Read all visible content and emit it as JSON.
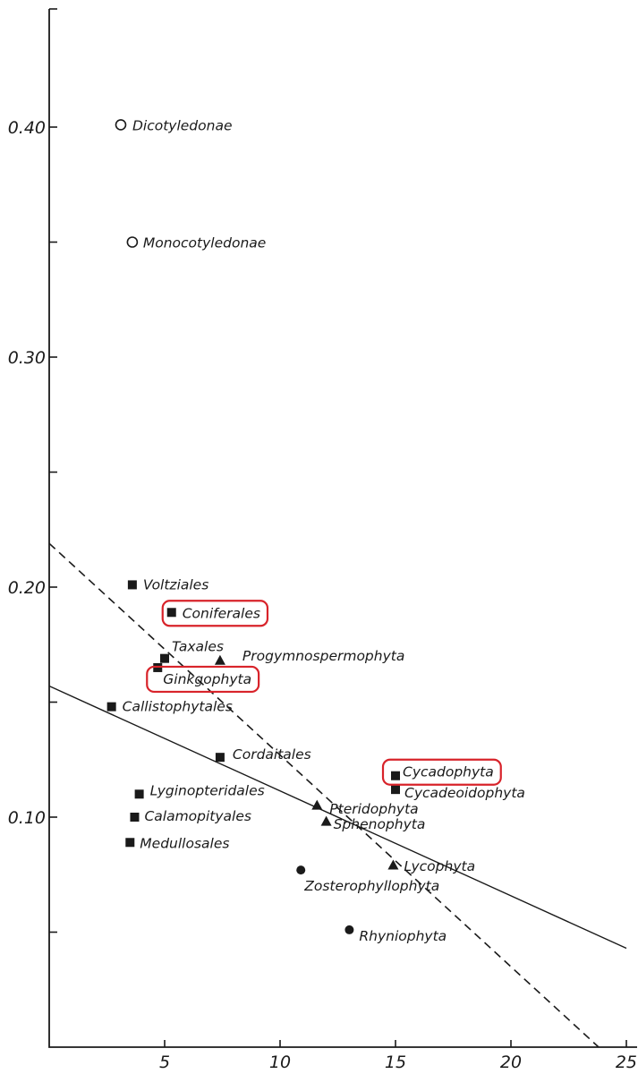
{
  "chart_data": {
    "type": "scatter",
    "title": "",
    "xlabel": "",
    "ylabel": "",
    "xlim": [
      0,
      25
    ],
    "ylim": [
      0,
      0.455
    ],
    "x_ticks": [
      {
        "value": 5,
        "label": "5"
      },
      {
        "value": 10,
        "label": "10"
      },
      {
        "value": 15,
        "label": "15"
      },
      {
        "value": 20,
        "label": "20"
      },
      {
        "value": 25,
        "label": "25"
      }
    ],
    "y_ticks": [
      {
        "value": 0.05,
        "label": ""
      },
      {
        "value": 0.1,
        "label": "0.10"
      },
      {
        "value": 0.15,
        "label": ""
      },
      {
        "value": 0.2,
        "label": "0.20"
      },
      {
        "value": 0.25,
        "label": ""
      },
      {
        "value": 0.3,
        "label": "0.30"
      },
      {
        "value": 0.35,
        "label": ""
      },
      {
        "value": 0.4,
        "label": "0.40"
      }
    ],
    "grid": false,
    "legend": "none",
    "points": [
      {
        "label": "Dicotyledonae",
        "x": 3.1,
        "y": 0.401,
        "marker": "open-circle",
        "highlighted": false
      },
      {
        "label": "Monocotyledonae",
        "x": 3.6,
        "y": 0.35,
        "marker": "open-circle",
        "highlighted": false
      },
      {
        "label": "Voltziales",
        "x": 3.6,
        "y": 0.201,
        "marker": "square",
        "highlighted": false
      },
      {
        "label": "Coniferales",
        "x": 5.3,
        "y": 0.189,
        "marker": "square",
        "highlighted": true
      },
      {
        "label": "Taxales",
        "x": 5.0,
        "y": 0.169,
        "marker": "square",
        "highlighted": false
      },
      {
        "label": "Progymnospermophyta",
        "x": 7.4,
        "y": 0.168,
        "marker": "triangle",
        "highlighted": false
      },
      {
        "label": "Ginkgophyta",
        "x": 4.7,
        "y": 0.165,
        "marker": "square",
        "highlighted": true
      },
      {
        "label": "Callistophytales",
        "x": 2.7,
        "y": 0.148,
        "marker": "square",
        "highlighted": false
      },
      {
        "label": "Cordaitales",
        "x": 7.4,
        "y": 0.126,
        "marker": "square",
        "highlighted": false
      },
      {
        "label": "Cycadophyta",
        "x": 15.0,
        "y": 0.118,
        "marker": "square",
        "highlighted": true
      },
      {
        "label": "Cycadeoidophyta",
        "x": 15.0,
        "y": 0.112,
        "marker": "square",
        "highlighted": false
      },
      {
        "label": "Lyginopteridales",
        "x": 3.9,
        "y": 0.11,
        "marker": "square",
        "highlighted": false
      },
      {
        "label": "Pteridophyta",
        "x": 11.6,
        "y": 0.105,
        "marker": "triangle",
        "highlighted": false
      },
      {
        "label": "Calamopityales",
        "x": 3.7,
        "y": 0.1,
        "marker": "square",
        "highlighted": false
      },
      {
        "label": "Sphenophyta",
        "x": 12.0,
        "y": 0.098,
        "marker": "triangle",
        "highlighted": false
      },
      {
        "label": "Medullosales",
        "x": 3.5,
        "y": 0.089,
        "marker": "square",
        "highlighted": false
      },
      {
        "label": "Lycophyta",
        "x": 14.9,
        "y": 0.079,
        "marker": "triangle",
        "highlighted": false
      },
      {
        "label": "Zosterophyllophyta",
        "x": 10.9,
        "y": 0.077,
        "marker": "filled-circle",
        "highlighted": false
      },
      {
        "label": "Rhyniophyta",
        "x": 13.0,
        "y": 0.051,
        "marker": "filled-circle",
        "highlighted": false
      }
    ],
    "fit_lines": [
      {
        "style": "solid",
        "start": [
          0,
          0.157
        ],
        "end": [
          25,
          0.043
        ]
      },
      {
        "style": "dashed",
        "start": [
          0,
          0.219
        ],
        "end": [
          23.8,
          0.0
        ]
      }
    ],
    "colors": {
      "ink": "#1a1a1a",
      "highlight": "#d8232a"
    }
  }
}
